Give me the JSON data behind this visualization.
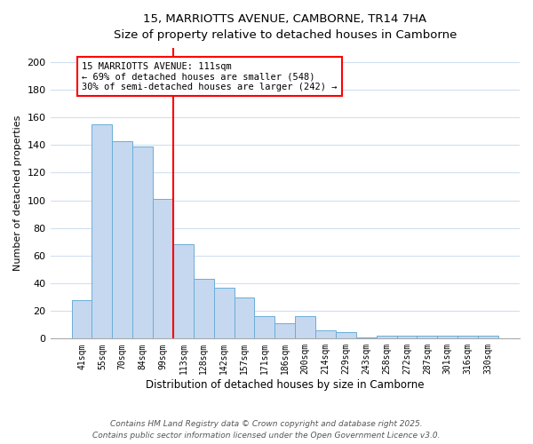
{
  "title_line1": "15, MARRIOTTS AVENUE, CAMBORNE, TR14 7HA",
  "title_line2": "Size of property relative to detached houses in Camborne",
  "xlabel": "Distribution of detached houses by size in Camborne",
  "ylabel": "Number of detached properties",
  "categories": [
    "41sqm",
    "55sqm",
    "70sqm",
    "84sqm",
    "99sqm",
    "113sqm",
    "128sqm",
    "142sqm",
    "157sqm",
    "171sqm",
    "186sqm",
    "200sqm",
    "214sqm",
    "229sqm",
    "243sqm",
    "258sqm",
    "272sqm",
    "287sqm",
    "301sqm",
    "316sqm",
    "330sqm"
  ],
  "values": [
    28,
    155,
    143,
    139,
    101,
    68,
    43,
    37,
    30,
    16,
    11,
    16,
    6,
    5,
    1,
    2,
    2,
    2,
    2,
    2,
    2
  ],
  "bar_color": "#c5d8f0",
  "bar_edge_color": "#6aaed6",
  "vline_color": "red",
  "vline_index": 5,
  "annotation_text": "15 MARRIOTTS AVENUE: 111sqm\n← 69% of detached houses are smaller (548)\n30% of semi-detached houses are larger (242) →",
  "annotation_box_color": "white",
  "annotation_box_edge": "red",
  "ylim": [
    0,
    210
  ],
  "yticks": [
    0,
    20,
    40,
    60,
    80,
    100,
    120,
    140,
    160,
    180,
    200
  ],
  "background_color": "#ffffff",
  "grid_color": "#d0dff0",
  "footer_line1": "Contains HM Land Registry data © Crown copyright and database right 2025.",
  "footer_line2": "Contains public sector information licensed under the Open Government Licence v3.0."
}
